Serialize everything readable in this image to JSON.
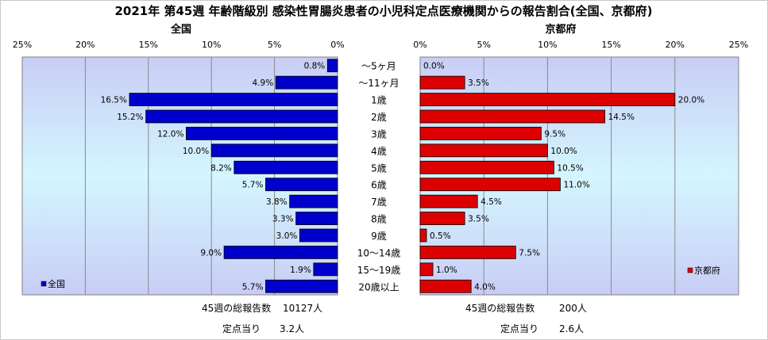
{
  "title": "2021年 第45週 年齢階級別 感染性胃腸炎患者の小児科定点医療機関からの報告割合(全国、京都府)",
  "chart_data": [
    {
      "type": "bar",
      "orientation": "horizontal",
      "direction": "right-to-left",
      "title": "全国",
      "categories": [
        "～5ヶ月",
        "～11ヶ月",
        "1歳",
        "2歳",
        "3歳",
        "4歳",
        "5歳",
        "6歳",
        "7歳",
        "8歳",
        "9歳",
        "10～14歳",
        "15～19歳",
        "20歳以上"
      ],
      "series": [
        {
          "name": "全国",
          "color": "#0000cc",
          "values": [
            0.8,
            4.9,
            16.5,
            15.2,
            12.0,
            10.0,
            8.2,
            5.7,
            3.8,
            3.3,
            3.0,
            9.0,
            1.9,
            5.7
          ]
        }
      ],
      "value_labels": [
        "0.8%",
        "4.9%",
        "16.5%",
        "15.2%",
        "12.0%",
        "10.0%",
        "8.2%",
        "5.7%",
        "3.8%",
        "3.3%",
        "3.0%",
        "9.0%",
        "1.9%",
        "5.7%"
      ],
      "xlim": [
        0,
        25
      ],
      "ticks": [
        "25%",
        "20%",
        "15%",
        "10%",
        "5%",
        "0%"
      ],
      "legend_position": "bottom-left"
    },
    {
      "type": "bar",
      "orientation": "horizontal",
      "direction": "left-to-right",
      "title": "京都府",
      "categories": [
        "～5ヶ月",
        "～11ヶ月",
        "1歳",
        "2歳",
        "3歳",
        "4歳",
        "5歳",
        "6歳",
        "7歳",
        "8歳",
        "9歳",
        "10～14歳",
        "15～19歳",
        "20歳以上"
      ],
      "series": [
        {
          "name": "京都府",
          "color": "#dd0000",
          "values": [
            0.0,
            3.5,
            20.0,
            14.5,
            9.5,
            10.0,
            10.5,
            11.0,
            4.5,
            3.5,
            0.5,
            7.5,
            1.0,
            4.0
          ]
        }
      ],
      "value_labels": [
        "0.0%",
        "3.5%",
        "20.0%",
        "14.5%",
        "9.5%",
        "10.0%",
        "10.5%",
        "11.0%",
        "4.5%",
        "3.5%",
        "0.5%",
        "7.5%",
        "1.0%",
        "4.0%"
      ],
      "xlim": [
        0,
        25
      ],
      "ticks": [
        "0%",
        "5%",
        "10%",
        "15%",
        "20%",
        "25%"
      ],
      "legend_position": "bottom-right"
    }
  ],
  "footer": {
    "national": {
      "total_label": "45週の総報告数",
      "total_value": "10127人",
      "per_label": "定点当り",
      "per_value": "3.2人"
    },
    "kyoto": {
      "total_label": "45週の総報告数",
      "total_value": "200人",
      "per_label": "定点当り",
      "per_value": "2.6人"
    }
  }
}
